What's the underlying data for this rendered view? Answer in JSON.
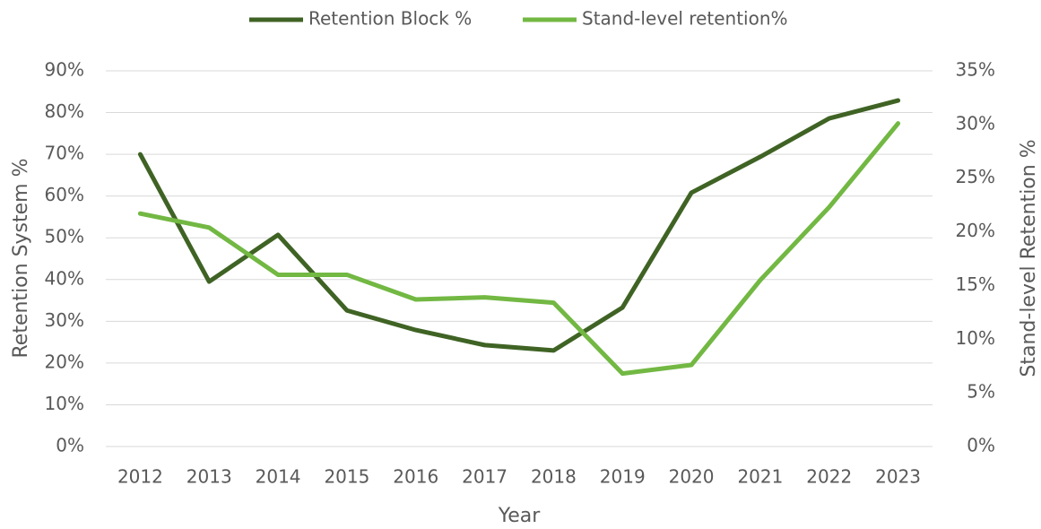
{
  "chart_data": {
    "type": "line",
    "x_label": "Year",
    "y_label": "Retention System %",
    "y2_label": "Stand-level Retention %",
    "categories": [
      "2012",
      "2013",
      "2014",
      "2015",
      "2016",
      "2017",
      "2018",
      "2019",
      "2020",
      "2021",
      "2022",
      "2023"
    ],
    "series": [
      {
        "name": "Retention Block %",
        "color": "#3f6324",
        "values": [
          70,
          39.5,
          50.7,
          32.6,
          27.9,
          24.3,
          23,
          33.3,
          60.8,
          69.4,
          78.6,
          82.9
        ]
      },
      {
        "name": "Stand-level retention%",
        "color": "#72b843",
        "axis": "y2",
        "values": [
          21.7,
          20.4,
          16.0,
          16.0,
          13.7,
          13.9,
          13.4,
          6.8,
          7.6,
          15.5,
          22.3,
          30.1
        ]
      }
    ],
    "ylim": [
      0,
      90
    ],
    "yticks": [
      {
        "value": 0,
        "label": "0%"
      },
      {
        "value": 10,
        "label": "10%"
      },
      {
        "value": 20,
        "label": "20%"
      },
      {
        "value": 30,
        "label": "30%"
      },
      {
        "value": 40,
        "label": "40%"
      },
      {
        "value": 50,
        "label": "50%"
      },
      {
        "value": 60,
        "label": "60%"
      },
      {
        "value": 70,
        "label": "70%"
      },
      {
        "value": 80,
        "label": "80%"
      },
      {
        "value": 90,
        "label": "90%"
      }
    ],
    "y2lim": [
      0,
      35
    ],
    "y2ticks": [
      {
        "value": 0,
        "label": "0%"
      },
      {
        "value": 5,
        "label": "5%"
      },
      {
        "value": 10,
        "label": "10%"
      },
      {
        "value": 15,
        "label": "15%"
      },
      {
        "value": 20,
        "label": "20%"
      },
      {
        "value": 25,
        "label": "25%"
      },
      {
        "value": 30,
        "label": "30%"
      },
      {
        "value": 35,
        "label": "35%"
      }
    ],
    "grid": true,
    "legend": "top"
  }
}
